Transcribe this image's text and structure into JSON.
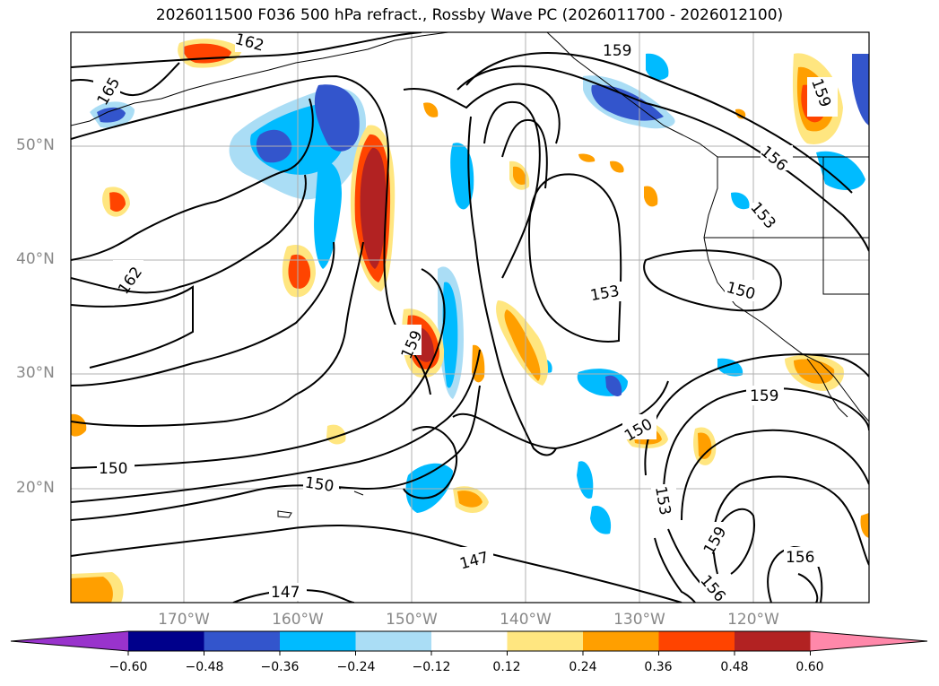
{
  "title": "2026011500 F036 500 hPa refract., Rossby Wave PC (2026011700 - 2026012100)",
  "lat_labels": [
    "50°N",
    "40°N",
    "30°N",
    "20°N"
  ],
  "lon_labels": [
    "170°W",
    "160°W",
    "150°W",
    "140°W",
    "130°W",
    "120°W"
  ],
  "contour_labels": [
    "162",
    "165",
    "159",
    "162",
    "159",
    "153",
    "150",
    "156",
    "153",
    "159",
    "150",
    "150",
    "150",
    "147",
    "153",
    "159",
    "156",
    "159",
    "156",
    "147"
  ],
  "colorbar": {
    "ticks": [
      "−0.60",
      "−0.48",
      "−0.36",
      "−0.24",
      "−0.12",
      "0.12",
      "0.24",
      "0.36",
      "0.48",
      "0.60"
    ],
    "colors": [
      "#9933cc",
      "#00008b",
      "#3355cc",
      "#00bbff",
      "#aaddf5",
      "#ffffff",
      "#ffe680",
      "#ff9f00",
      "#ff4400",
      "#b22222",
      "#ff88aa"
    ]
  },
  "shading_colors": {
    "neg_light": "#aaddf5",
    "neg_mid": "#00bbff",
    "neg_strong": "#3355cc",
    "pos_light": "#ffe680",
    "pos_mid": "#ff9f00",
    "pos_strong": "#ff4400",
    "pos_max": "#b22222"
  }
}
